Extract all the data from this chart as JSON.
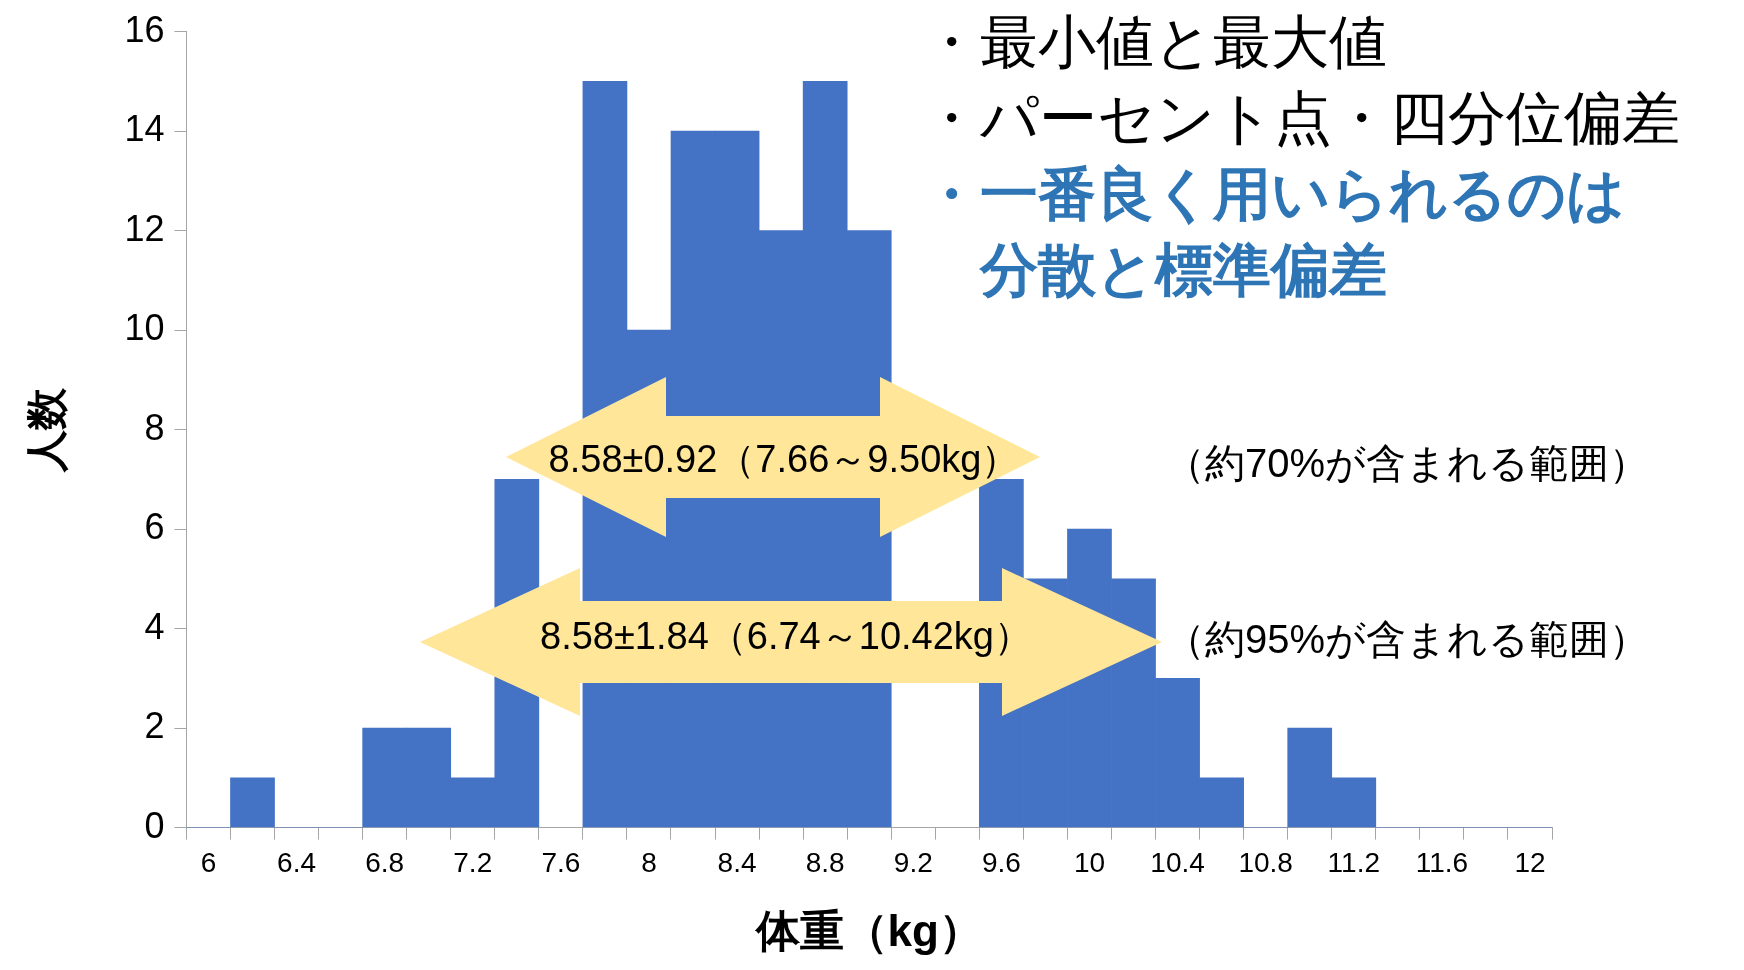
{
  "chart_data": {
    "type": "bar",
    "xlabel": "体重（kg）",
    "ylabel": "人数",
    "categories": [
      "6",
      null,
      "6.4",
      null,
      "6.8",
      null,
      "7.2",
      null,
      "7.6",
      null,
      "8",
      null,
      "8.4",
      null,
      "8.8",
      null,
      "9.2",
      null,
      "9.6",
      null,
      "10",
      null,
      "10.4",
      null,
      "10.8",
      null,
      "11.2",
      null,
      "11.6",
      null,
      "12"
    ],
    "values": [
      0,
      1,
      0,
      0,
      2,
      2,
      1,
      7,
      null,
      15,
      10,
      14,
      14,
      12,
      15,
      12,
      null,
      null,
      7,
      5,
      6,
      5,
      3,
      1,
      0,
      2,
      1,
      0,
      0,
      0,
      0
    ],
    "color": "#4472c4",
    "ylim": [
      0,
      16
    ],
    "yticks": [
      0,
      2,
      4,
      6,
      8,
      10,
      12,
      14,
      16
    ],
    "legend": false,
    "annotations": [
      "・最小値と最大値",
      "・パーセント点・四分位偏差",
      "・一番良く用いられるのは分散と標準偏差",
      "8.58±0.92（7.66～9.50kg）",
      "（約70%が含まれる範囲）",
      "8.58±1.84（6.74～10.42kg）",
      "（約95%が含まれる範囲）"
    ]
  }
}
